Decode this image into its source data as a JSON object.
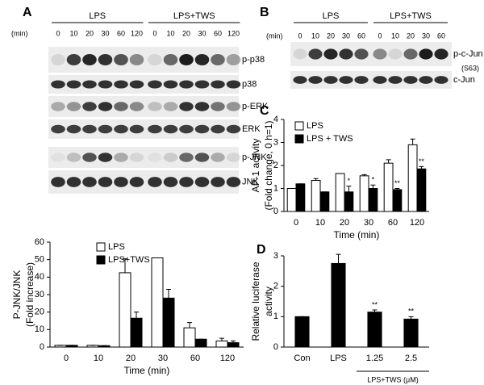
{
  "panel_labels": [
    "A",
    "B",
    "C",
    "D"
  ],
  "blots": [
    {
      "unit": "(min)",
      "groups": [
        {
          "name": "LPS",
          "lanes": [
            "0",
            "10",
            "20",
            "30",
            "60",
            "120"
          ]
        },
        {
          "name": "LPS+TWS",
          "lanes": [
            "0",
            "10",
            "20",
            "30",
            "60",
            "120"
          ]
        }
      ],
      "rows": [
        "p-p38",
        "p38",
        "p-ERK",
        "ERK",
        "p-JNK",
        "JNK"
      ]
    },
    {
      "unit": "(min)",
      "groups": [
        {
          "name": "LPS",
          "lanes": [
            "0",
            "10",
            "20",
            "30",
            "60"
          ]
        },
        {
          "name": "LPS+TWS",
          "lanes": [
            "0",
            "10",
            "20",
            "30",
            "60"
          ]
        }
      ],
      "rows": [
        "p-c-Jun",
        "c-Jun"
      ],
      "row_note": "(S63)"
    }
  ],
  "chart_data": [
    {
      "type": "bar",
      "ylabel": [
        "P-JNK/JNK",
        "(Fold increase)"
      ],
      "xlabel": "Time (min)",
      "categories": [
        "0",
        "10",
        "20",
        "30",
        "60",
        "120"
      ],
      "series": [
        {
          "name": "LPS",
          "color": "#ffffff",
          "values": [
            1,
            1,
            42.5,
            51,
            11,
            3.5
          ],
          "errors": [
            0,
            0,
            8,
            0,
            3,
            1.5
          ]
        },
        {
          "name": "LPS+TWS",
          "color": "#000000",
          "values": [
            1,
            0.8,
            16.5,
            28,
            4.5,
            2.5
          ],
          "errors": [
            0,
            0,
            3.5,
            5,
            0,
            1
          ]
        }
      ],
      "ylim": [
        0,
        60
      ],
      "yticks": [
        0,
        10,
        20,
        30,
        40,
        50,
        60
      ],
      "legend": "upper left"
    },
    {
      "type": "bar",
      "ylabel": [
        "AP-1 activity",
        "(Fold change, 0 h=1)"
      ],
      "xlabel": "Time (min)",
      "categories": [
        "0",
        "10",
        "20",
        "30",
        "60",
        "120"
      ],
      "series": [
        {
          "name": "LPS",
          "color": "#ffffff",
          "values": [
            1,
            1.35,
            1.65,
            1.55,
            2.1,
            2.9
          ],
          "errors": [
            0,
            0.08,
            0,
            0.05,
            0.15,
            0.25
          ]
        },
        {
          "name": "LPS + TWS",
          "color": "#000000",
          "values": [
            1.2,
            0.85,
            0.85,
            1.0,
            0.95,
            1.85
          ],
          "errors": [
            0,
            0,
            0.25,
            0.15,
            0.05,
            0.1
          ],
          "annotations": [
            null,
            null,
            "*",
            "*",
            "**",
            "**"
          ]
        }
      ],
      "ylim": [
        0,
        4
      ],
      "yticks": [
        0,
        1,
        2,
        3,
        4
      ],
      "legend": "upper left"
    },
    {
      "type": "bar",
      "ylabel": [
        "Relative luciferase",
        "activity"
      ],
      "categories": [
        "Con",
        "LPS",
        "1.25",
        "2.5"
      ],
      "series": [
        {
          "color": "#000000",
          "values": [
            1,
            2.75,
            1.15,
            0.92
          ],
          "errors": [
            0,
            0.3,
            0.07,
            0.08
          ],
          "annotations": [
            null,
            null,
            "**",
            "**"
          ]
        }
      ],
      "group_label": "LPS+TWS (μM)",
      "ylim": [
        0,
        3
      ],
      "yticks": [
        0,
        1,
        2,
        3
      ]
    }
  ]
}
